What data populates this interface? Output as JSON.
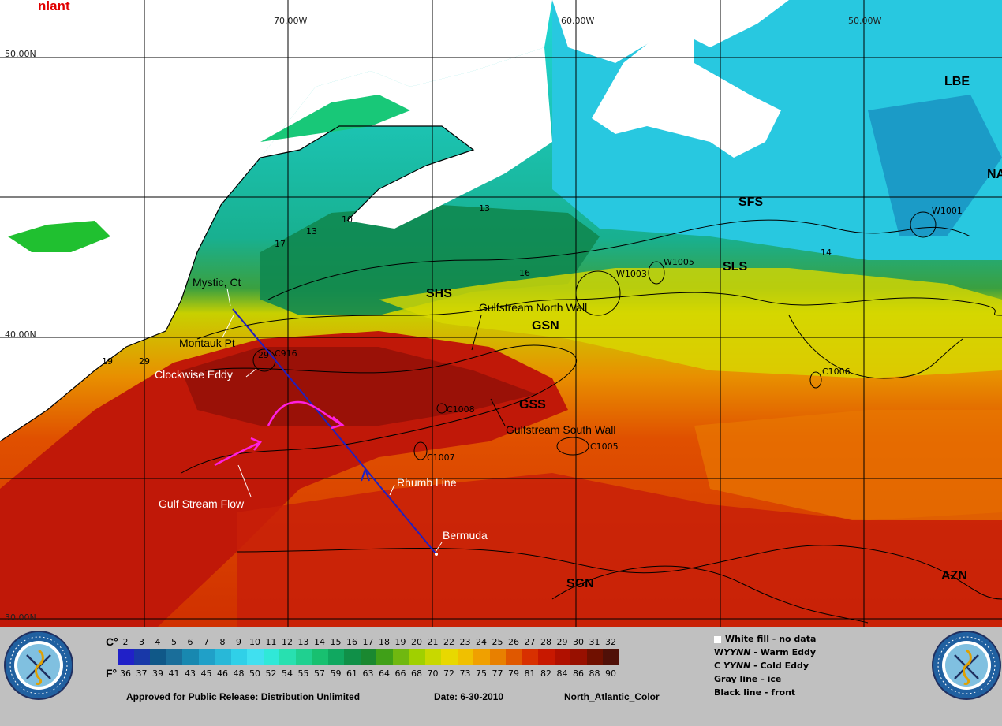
{
  "map": {
    "title": "nlant",
    "lon_labels": [
      "70.00W",
      "60.00W",
      "50.00W"
    ],
    "lat_labels": [
      "50.00N",
      "40.00N",
      "30.00N"
    ],
    "fronts": [
      "LBE",
      "NA",
      "SFS",
      "SLS",
      "SHS",
      "GSN",
      "GSS",
      "SGN",
      "AZN"
    ],
    "places": {
      "mystic": "Mystic, Ct",
      "montauk": "Montauk Pt",
      "clockwise_eddy": "Clockwise Eddy",
      "north_wall": "Gulfstream North Wall",
      "south_wall": "Gulfstream South Wall",
      "rhumb_line": "Rhumb Line",
      "gulf_stream_flow": "Gulf Stream Flow",
      "bermuda": "Bermuda"
    },
    "eddies": [
      "W1001",
      "W1003",
      "W1005",
      "C1006",
      "C1008",
      "C1007",
      "C1005",
      "C916"
    ],
    "isotherm_labels": [
      "10",
      "13",
      "13",
      "14",
      "16",
      "17",
      "19",
      "29",
      "29"
    ],
    "colors": {
      "land": "#ffffff",
      "rhumb_line": "#2020c0",
      "flow_arrow": "#ff20e0",
      "title": "#e00000"
    }
  },
  "legend": {
    "celsius_unit": "C°",
    "fahrenheit_unit": "F°",
    "celsius_ticks": [
      "2",
      "3",
      "4",
      "5",
      "6",
      "7",
      "8",
      "9",
      "10",
      "11",
      "12",
      "13",
      "14",
      "15",
      "16",
      "17",
      "18",
      "19",
      "20",
      "21",
      "22",
      "23",
      "24",
      "25",
      "26",
      "27",
      "28",
      "29",
      "30",
      "31",
      "32"
    ],
    "fahrenheit_ticks": [
      "36",
      "37",
      "39",
      "41",
      "43",
      "45",
      "46",
      "48",
      "50",
      "52",
      "54",
      "55",
      "57",
      "59",
      "61",
      "63",
      "64",
      "66",
      "68",
      "70",
      "72",
      "73",
      "75",
      "77",
      "79",
      "81",
      "82",
      "84",
      "86",
      "88",
      "90"
    ],
    "scale_colors": [
      "#2020c8",
      "#1838a8",
      "#105888",
      "#1a6e9a",
      "#1888b0",
      "#20a0c8",
      "#28b8d8",
      "#30d0e8",
      "#40e0f0",
      "#30e8d8",
      "#28e0b0",
      "#20d090",
      "#18c070",
      "#10a860",
      "#109048",
      "#1a8830",
      "#40a018",
      "#70b810",
      "#a0d000",
      "#c8d800",
      "#e8d800",
      "#f0c000",
      "#f0a000",
      "#e88000",
      "#e05800",
      "#d83000",
      "#c81800",
      "#b01000",
      "#981000",
      "#701000",
      "#501008"
    ],
    "key_lines": [
      {
        "bold": "White fill -",
        "rest": "  no data"
      },
      {
        "bold": "W",
        "italic": "YYNN",
        "rest": " - Warm Eddy"
      },
      {
        "bold": "C ",
        "italic": "YYNN",
        "rest": " - Cold Eddy"
      },
      {
        "bold": "Gray line - ice",
        "rest": ""
      },
      {
        "bold": "Black line - front",
        "rest": ""
      }
    ],
    "release": "Approved for Public Release: Distribution Unlimited",
    "date": "Date: 6-30-2010",
    "product": "North_Atlantic_Color"
  }
}
